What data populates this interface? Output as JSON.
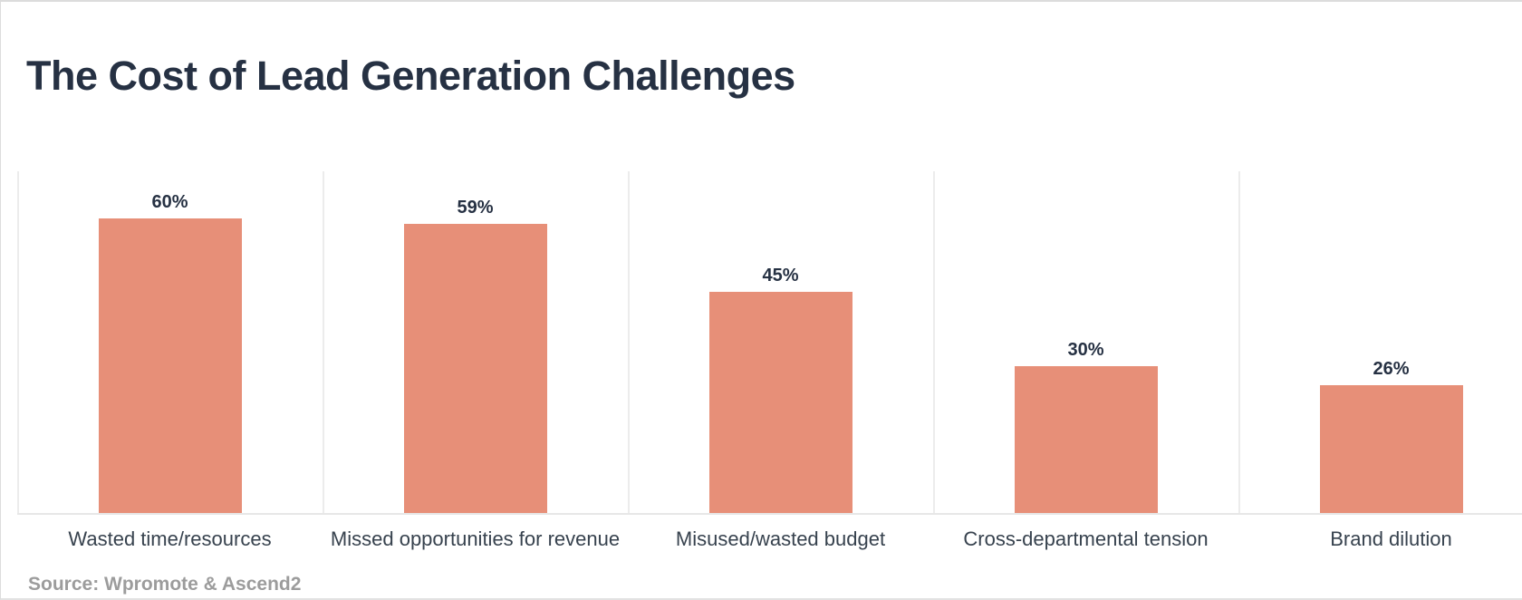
{
  "page": {
    "title": "The Cost of Lead Generation Challenges",
    "source": "Source: Wpromote & Ascend2"
  },
  "chart_data": {
    "type": "bar",
    "title": "The Cost of Lead Generation Challenges",
    "categories": [
      "Wasted time/resources",
      "Missed opportunities for revenue",
      "Misused/wasted budget",
      "Cross-departmental tension",
      "Brand dilution"
    ],
    "values": [
      60,
      59,
      45,
      30,
      26
    ],
    "value_labels": [
      "60%",
      "59%",
      "45%",
      "30%",
      "26%"
    ],
    "xlabel": "",
    "ylabel": "",
    "ylim": [
      0,
      70
    ],
    "legend": "none",
    "grid": "vertical-category-separators",
    "bar_color": "#e78f78",
    "title_color": "#263143",
    "value_label_color": "#263143",
    "category_label_color": "#37424e",
    "gridline_color": "#ececec",
    "axis_line_color": "#e7e7e7",
    "source": "Source: Wpromote & Ascend2",
    "source_color": "#9c9c9c"
  }
}
